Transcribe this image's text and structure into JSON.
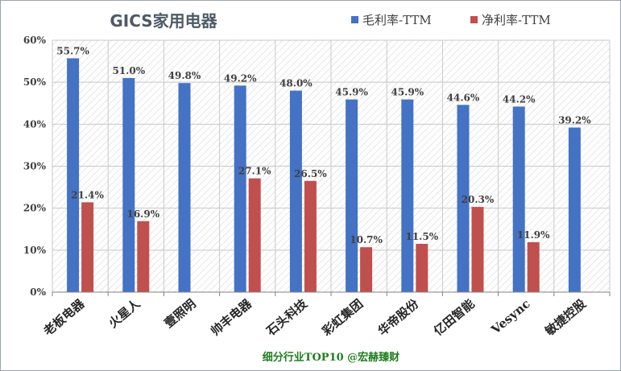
{
  "chart_data": {
    "type": "bar",
    "title": "GICS家用电器",
    "footer": "细分行业TOP10 @宏赫臻财",
    "categories": [
      "老板电器",
      "火星人",
      "壹照明",
      "帅丰电器",
      "石头科技",
      "彩虹集团",
      "华帝股份",
      "亿田智能",
      "Vesync",
      "敏捷控股"
    ],
    "series": [
      {
        "name": "毛利率-TTM",
        "color": "#4472c4",
        "values": [
          55.7,
          51.0,
          49.8,
          49.2,
          48.0,
          45.9,
          45.9,
          44.6,
          44.2,
          39.2
        ],
        "labels": [
          "55.7%",
          "51.0%",
          "49.8%",
          "49.2%",
          "48.0%",
          "45.9%",
          "45.9%",
          "44.6%",
          "44.2%",
          "39.2%"
        ]
      },
      {
        "name": "净利率-TTM",
        "color": "#c0504d",
        "values": [
          21.4,
          16.9,
          null,
          27.1,
          26.5,
          10.7,
          11.5,
          20.3,
          11.9,
          null
        ],
        "labels": [
          "21.4%",
          "16.9%",
          "",
          "27.1%",
          "26.5%",
          "10.7%",
          "11.5%",
          "20.3%",
          "11.9%",
          ""
        ]
      }
    ],
    "ylim": [
      0,
      60
    ],
    "yticks": [
      "0%",
      "10%",
      "20%",
      "30%",
      "40%",
      "50%",
      "60%"
    ],
    "grid": true,
    "legend": "top-right",
    "colors": {
      "title": "#4d5a66",
      "footer": "#1e7d1e",
      "axis": "#404040"
    }
  }
}
